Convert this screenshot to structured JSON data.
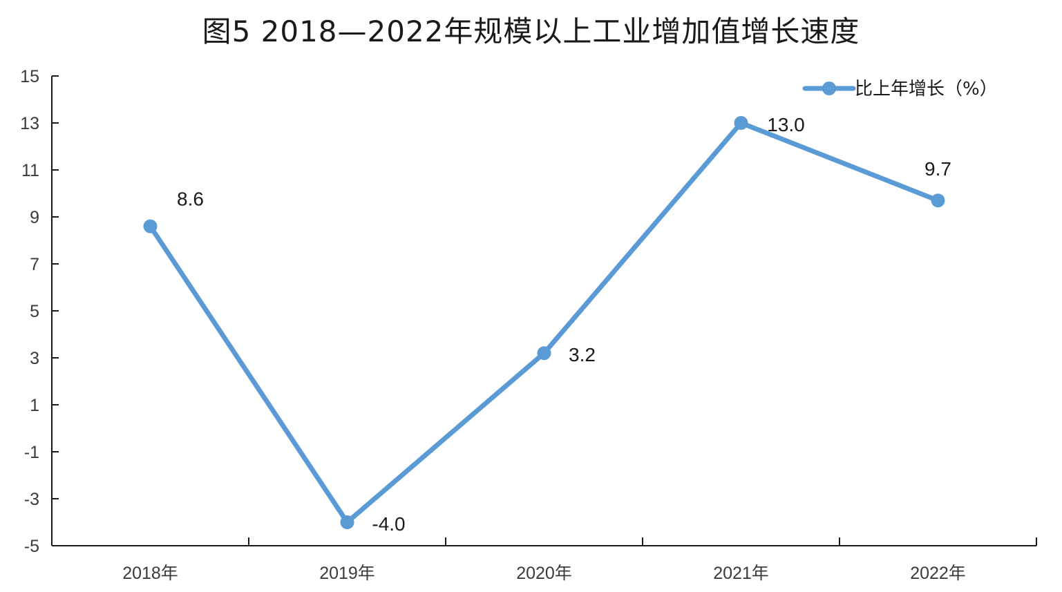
{
  "chart_data": {
    "type": "line",
    "title": "图5   2018—2022年规模以上工业增加值增长速度",
    "categories": [
      "2018年",
      "2019年",
      "2020年",
      "2021年",
      "2022年"
    ],
    "series": [
      {
        "name": "比上年增长（%）",
        "values": [
          8.6,
          -4.0,
          3.2,
          13.0,
          9.7
        ],
        "labels": [
          "8.6",
          "-4.0",
          "3.2",
          "13.0",
          "9.7"
        ],
        "color": "#5b9bd5"
      }
    ],
    "xlabel": "",
    "ylabel": "",
    "ylim": [
      -5,
      15
    ],
    "yticks": [
      "-5",
      "-3",
      "-1",
      "1",
      "3",
      "5",
      "7",
      "9",
      "11",
      "13",
      "15"
    ],
    "grid": false,
    "legend_position": "top-right"
  }
}
